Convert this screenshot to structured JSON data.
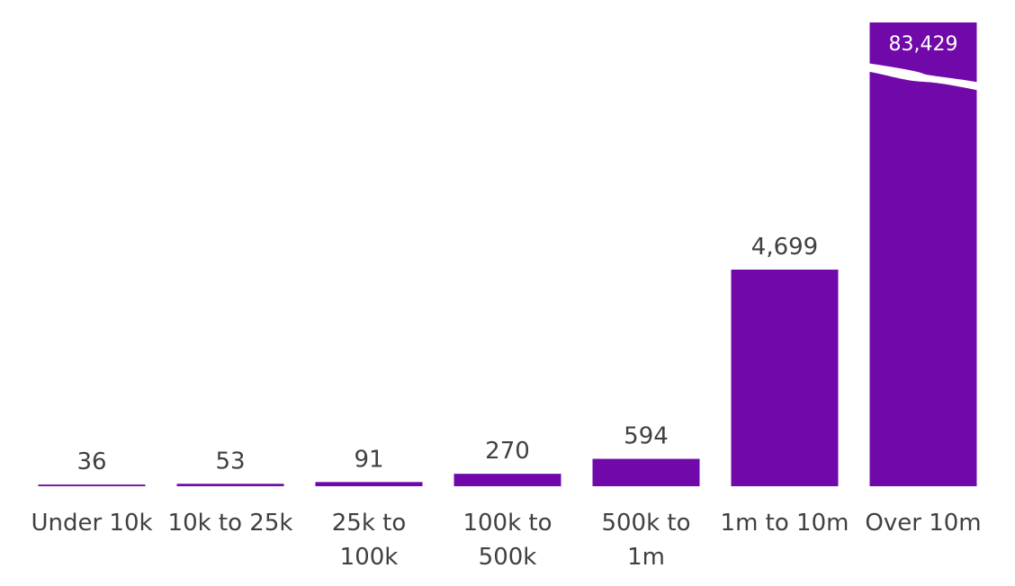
{
  "chart_data": {
    "type": "bar",
    "categories": [
      "Under 10k",
      "10k to 25k",
      "25k to 100k",
      "100k to 500k",
      "500k to 1m",
      "1m to 10m",
      "Over 10m"
    ],
    "category_lines": [
      [
        "Under 10k"
      ],
      [
        "10k to 25k"
      ],
      [
        "25k to",
        "100k"
      ],
      [
        "100k to",
        "500k"
      ],
      [
        "500k to",
        "1m"
      ],
      [
        "1m to 10m"
      ],
      [
        "Over 10m"
      ]
    ],
    "values": [
      36,
      53,
      91,
      270,
      594,
      4699,
      83429
    ],
    "value_labels": [
      "36",
      "53",
      "91",
      "270",
      "594",
      "4,699",
      "83,429"
    ],
    "axis_break": true,
    "bar_color": "#7109AA",
    "title": "",
    "xlabel": "",
    "ylabel": ""
  }
}
